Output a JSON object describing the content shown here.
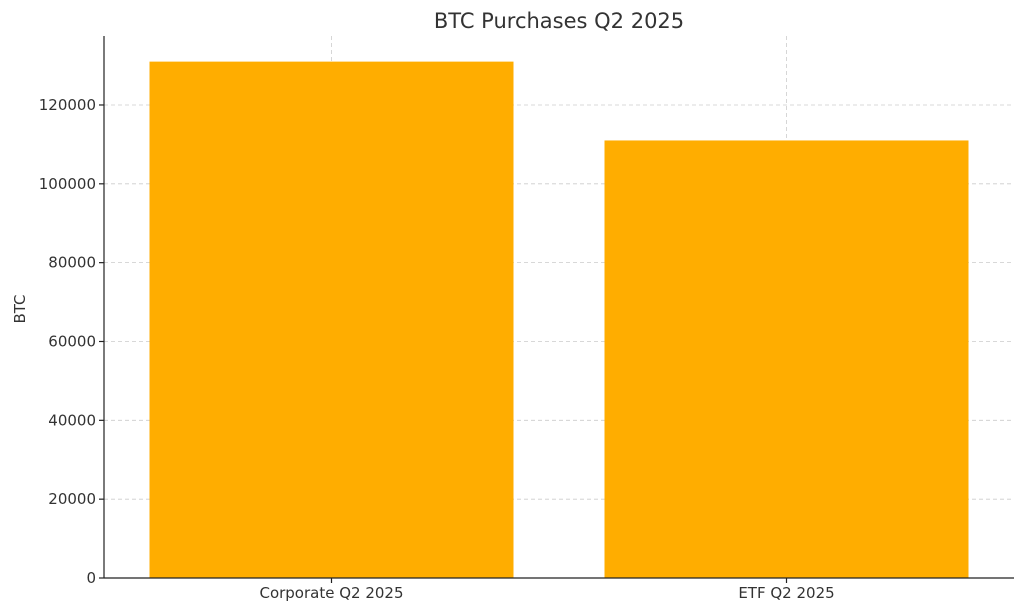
{
  "chart_data": {
    "type": "bar",
    "title": "BTC Purchases Q2 2025",
    "xlabel": "",
    "ylabel": "BTC",
    "categories": [
      "Corporate Q2 2025",
      "ETF Q2 2025"
    ],
    "values": [
      131000,
      111000
    ],
    "ylim": [
      0,
      137500
    ],
    "yticks": [
      0,
      20000,
      40000,
      60000,
      80000,
      100000,
      120000
    ],
    "bar_color": "#ffad00",
    "grid": true,
    "legend": "none"
  }
}
